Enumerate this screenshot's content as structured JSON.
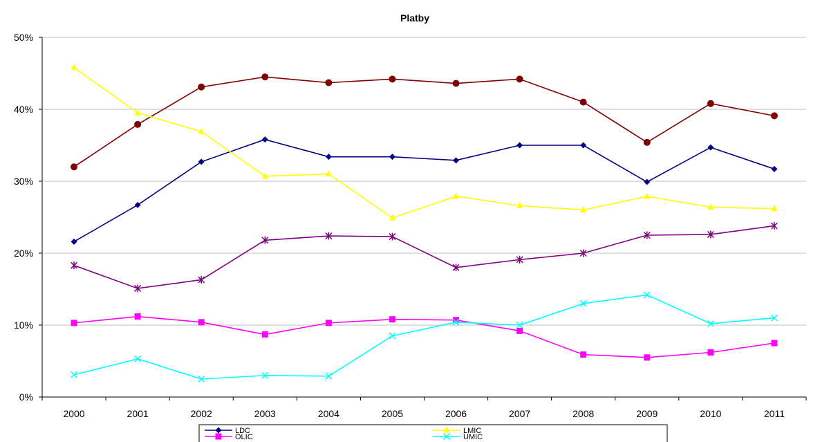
{
  "chart_data": {
    "type": "line",
    "title": "Platby",
    "xlabel": "",
    "ylabel": "",
    "categories": [
      "2000",
      "2001",
      "2002",
      "2003",
      "2004",
      "2005",
      "2006",
      "2007",
      "2008",
      "2009",
      "2010",
      "2011"
    ],
    "ylim": [
      0,
      0.5
    ],
    "yticks": [
      0,
      0.1,
      0.2,
      0.3,
      0.4,
      0.5
    ],
    "ytick_labels": [
      "0%",
      "10%",
      "20%",
      "30%",
      "40%",
      "50%"
    ],
    "grid": true,
    "legend_position": "bottom",
    "series": [
      {
        "name": "",
        "color": "#800000",
        "marker": "circle",
        "values": [
          0.32,
          0.379,
          0.431,
          0.445,
          0.437,
          0.442,
          0.436,
          0.442,
          0.41,
          0.354,
          0.408,
          0.391
        ]
      },
      {
        "name": "LDC",
        "color": "#000080",
        "marker": "diamond",
        "values": [
          0.216,
          0.267,
          0.327,
          0.358,
          0.334,
          0.334,
          0.329,
          0.35,
          0.35,
          0.299,
          0.347,
          0.317
        ]
      },
      {
        "name": "LMIC",
        "color": "#FFFF00",
        "marker": "triangle",
        "values": [
          0.458,
          0.395,
          0.369,
          0.307,
          0.31,
          0.249,
          0.279,
          0.266,
          0.26,
          0.279,
          0.264,
          0.262
        ]
      },
      {
        "name": "",
        "color": "#800080",
        "marker": "star",
        "values": [
          0.183,
          0.151,
          0.163,
          0.218,
          0.224,
          0.223,
          0.18,
          0.191,
          0.2,
          0.225,
          0.226,
          0.238
        ]
      },
      {
        "name": "OLIC",
        "color": "#FF00FF",
        "marker": "square",
        "values": [
          0.103,
          0.112,
          0.104,
          0.087,
          0.103,
          0.108,
          0.107,
          0.092,
          0.059,
          0.055,
          0.062,
          0.075
        ]
      },
      {
        "name": "UMIC",
        "color": "#00FFFF",
        "marker": "x",
        "values": [
          0.031,
          0.053,
          0.025,
          0.03,
          0.029,
          0.085,
          0.104,
          0.1,
          0.13,
          0.142,
          0.102,
          0.11
        ]
      }
    ]
  }
}
